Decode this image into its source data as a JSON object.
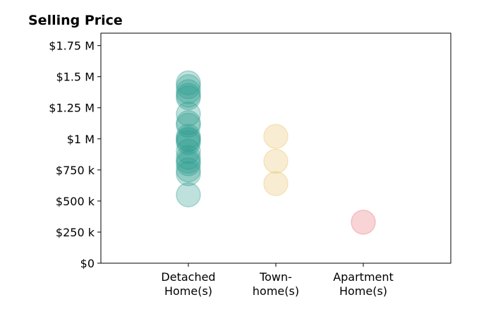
{
  "chart_data": {
    "type": "scatter",
    "title": "Selling Price",
    "xlabel": "",
    "ylabel": "",
    "ylim": [
      0,
      1850000
    ],
    "y_ticks": [
      {
        "value": 0,
        "label": "$0"
      },
      {
        "value": 250000,
        "label": "$250 k"
      },
      {
        "value": 500000,
        "label": "$500 k"
      },
      {
        "value": 750000,
        "label": "$750 k"
      },
      {
        "value": 1000000,
        "label": "$1 M"
      },
      {
        "value": 1250000,
        "label": "$1.25 M"
      },
      {
        "value": 1500000,
        "label": "$1.5 M"
      },
      {
        "value": 1750000,
        "label": "$1.75 M"
      }
    ],
    "categories": [
      {
        "lines": [
          "Detached",
          "Home(s)"
        ]
      },
      {
        "lines": [
          "Town-",
          "home(s)"
        ]
      },
      {
        "lines": [
          "Apartment",
          "Home(s)"
        ]
      }
    ],
    "grid": false,
    "series": [
      {
        "category": 0,
        "color": "#2a9d8f",
        "values": [
          1450000,
          1420000,
          1380000,
          1350000,
          1330000,
          1200000,
          1130000,
          1110000,
          1020000,
          1000000,
          990000,
          970000,
          900000,
          850000,
          820000,
          800000,
          750000,
          720000,
          550000
        ]
      },
      {
        "category": 1,
        "color": "#e9c46a",
        "values": [
          1020000,
          820000,
          640000
        ]
      },
      {
        "category": 2,
        "color": "#e76f7a",
        "values": [
          330000
        ]
      }
    ]
  }
}
